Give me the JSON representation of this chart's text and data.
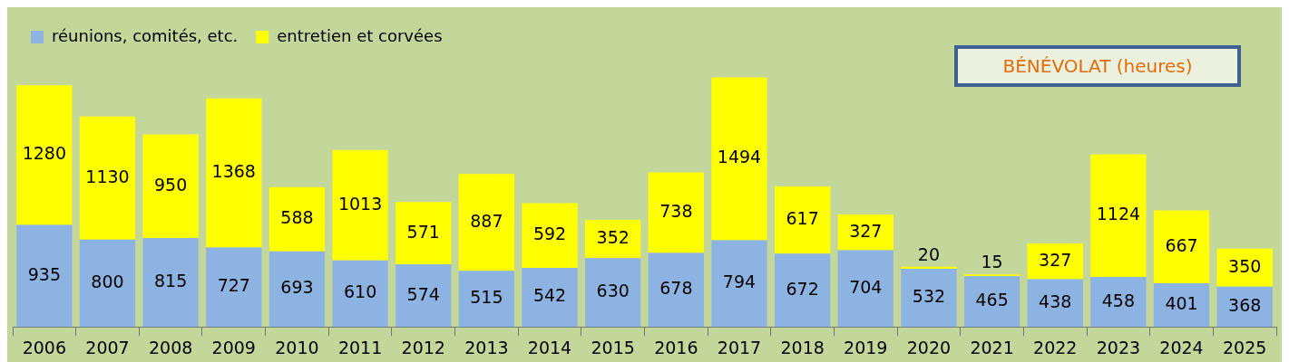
{
  "chart_data": {
    "type": "bar",
    "title": "BÉNÉVOLAT (heures)",
    "stacked": true,
    "data_labels": true,
    "legend": "top",
    "grid": false,
    "categories": [
      "2006",
      "2007",
      "2008",
      "2009",
      "2010",
      "2011",
      "2012",
      "2013",
      "2014",
      "2015",
      "2016",
      "2017",
      "2018",
      "2019",
      "2020",
      "2021",
      "2022",
      "2023",
      "2024",
      "2025"
    ],
    "series": [
      {
        "name": "réunions, comités, etc.",
        "color": "#8db3e2",
        "values": [
          935,
          800,
          815,
          727,
          693,
          610,
          574,
          515,
          542,
          630,
          678,
          794,
          672,
          704,
          532,
          465,
          438,
          458,
          401,
          368
        ]
      },
      {
        "name": "entretien et corvées",
        "color": "#ffff00",
        "values": [
          1280,
          1130,
          950,
          1368,
          588,
          1013,
          571,
          887,
          592,
          352,
          738,
          1494,
          617,
          327,
          20,
          15,
          327,
          1124,
          667,
          350
        ]
      }
    ]
  }
}
